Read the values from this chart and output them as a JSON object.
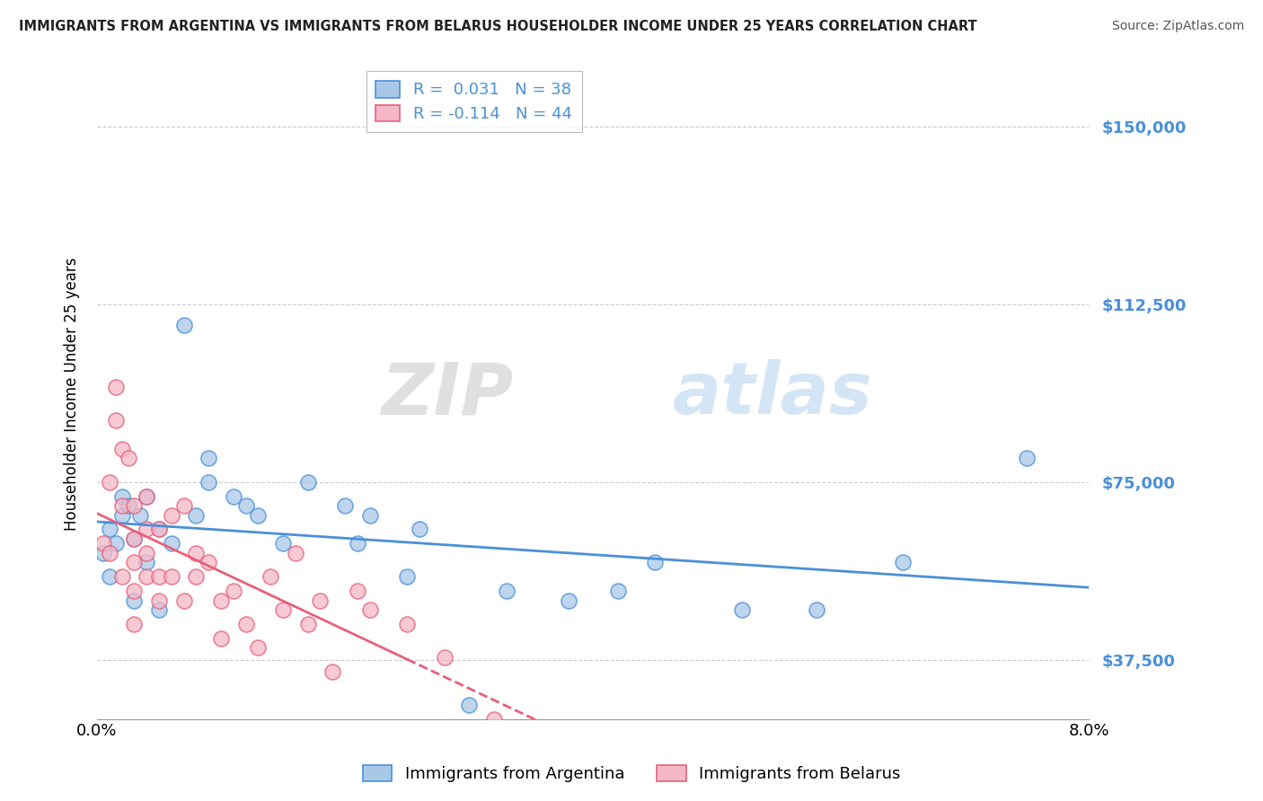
{
  "title": "IMMIGRANTS FROM ARGENTINA VS IMMIGRANTS FROM BELARUS HOUSEHOLDER INCOME UNDER 25 YEARS CORRELATION CHART",
  "source": "Source: ZipAtlas.com",
  "ylabel": "Householder Income Under 25 years",
  "watermark": "ZIPatlas",
  "legend1_label": "R =  0.031   N = 38",
  "legend2_label": "R = -0.114   N = 44",
  "color_argentina": "#a8c8e8",
  "color_belarus": "#f4b8c8",
  "line_argentina": "#4a90d9",
  "line_belarus": "#e8607a",
  "yticks": [
    37500,
    75000,
    112500,
    150000
  ],
  "ytick_labels": [
    "$37,500",
    "$75,000",
    "$112,500",
    "$150,000"
  ],
  "xlim": [
    0.0,
    0.08
  ],
  "ylim": [
    25000,
    162000
  ],
  "argentina_x": [
    0.0005,
    0.001,
    0.001,
    0.0015,
    0.002,
    0.002,
    0.0025,
    0.003,
    0.003,
    0.0035,
    0.004,
    0.004,
    0.005,
    0.005,
    0.006,
    0.007,
    0.008,
    0.009,
    0.009,
    0.011,
    0.012,
    0.013,
    0.015,
    0.017,
    0.02,
    0.021,
    0.022,
    0.025,
    0.026,
    0.03,
    0.033,
    0.038,
    0.042,
    0.045,
    0.052,
    0.058,
    0.065,
    0.075
  ],
  "argentina_y": [
    60000,
    55000,
    65000,
    62000,
    68000,
    72000,
    70000,
    63000,
    50000,
    68000,
    72000,
    58000,
    65000,
    48000,
    62000,
    108000,
    68000,
    75000,
    80000,
    72000,
    70000,
    68000,
    62000,
    75000,
    70000,
    62000,
    68000,
    55000,
    65000,
    28000,
    52000,
    50000,
    52000,
    58000,
    48000,
    48000,
    58000,
    80000
  ],
  "belarus_x": [
    0.0005,
    0.001,
    0.001,
    0.0015,
    0.0015,
    0.002,
    0.002,
    0.002,
    0.0025,
    0.003,
    0.003,
    0.003,
    0.003,
    0.003,
    0.004,
    0.004,
    0.004,
    0.004,
    0.005,
    0.005,
    0.005,
    0.006,
    0.006,
    0.007,
    0.007,
    0.008,
    0.008,
    0.009,
    0.01,
    0.01,
    0.011,
    0.012,
    0.013,
    0.014,
    0.015,
    0.016,
    0.017,
    0.018,
    0.019,
    0.021,
    0.022,
    0.025,
    0.028,
    0.032
  ],
  "belarus_y": [
    62000,
    75000,
    60000,
    95000,
    88000,
    82000,
    70000,
    55000,
    80000,
    70000,
    63000,
    58000,
    52000,
    45000,
    72000,
    65000,
    60000,
    55000,
    65000,
    55000,
    50000,
    68000,
    55000,
    70000,
    50000,
    60000,
    55000,
    58000,
    50000,
    42000,
    52000,
    45000,
    40000,
    55000,
    48000,
    60000,
    45000,
    50000,
    35000,
    52000,
    48000,
    45000,
    38000,
    25000
  ]
}
